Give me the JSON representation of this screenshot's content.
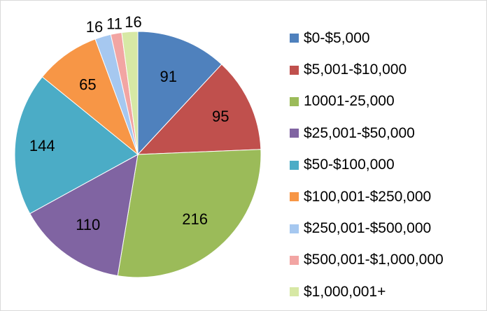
{
  "chart_data": {
    "type": "pie",
    "title": "",
    "legend_position": "right",
    "categories": [
      "$0-$5,000",
      "$5,001-$10,000",
      "10001-25,000",
      "$25,001-$50,000",
      "$50-$100,000",
      "$100,001-$250,000",
      "$250,001-$500,000",
      "$500,001-$1,000,000",
      "$1,000,001+"
    ],
    "values": [
      91,
      95,
      216,
      110,
      144,
      65,
      16,
      11,
      16
    ],
    "data_labels": [
      "91",
      "95",
      "216",
      "110",
      "144",
      "65",
      "16",
      "11",
      "16"
    ],
    "colors": [
      "#4F81BD",
      "#C0504D",
      "#9BBB59",
      "#8064A2",
      "#4BACC6",
      "#F79646",
      "#A6C8F0",
      "#F2A5A3",
      "#D7E8A5"
    ]
  }
}
